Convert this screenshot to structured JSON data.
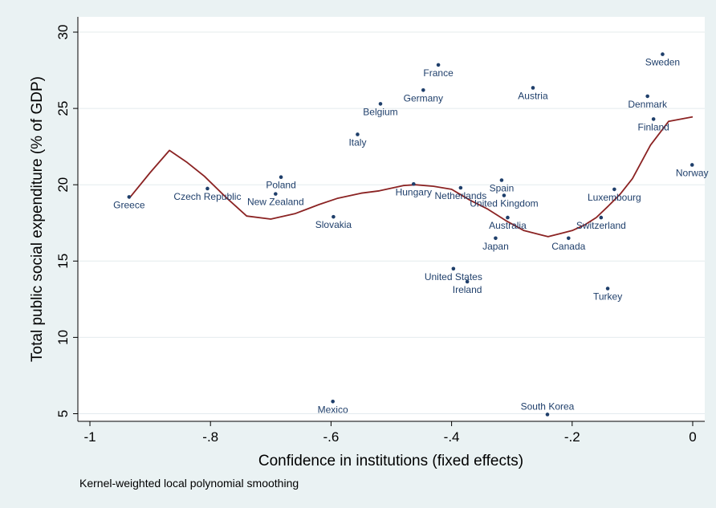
{
  "chart_data": {
    "type": "scatter",
    "title": "",
    "xlabel": "Confidence in institutions (fixed effects)",
    "ylabel": "Total public social expenditure (% of GDP)",
    "note": "Kernel-weighted local polynomial smoothing",
    "xlim": [
      -1.02,
      0.02
    ],
    "ylim": [
      4.5,
      31
    ],
    "xticks": [
      -1,
      -0.8,
      -0.6,
      -0.4,
      -0.2,
      0
    ],
    "xtick_labels": [
      "-1",
      "-.8",
      "-.6",
      "-.4",
      "-.2",
      "0"
    ],
    "yticks": [
      5,
      10,
      15,
      20,
      25,
      30
    ],
    "ytick_labels": [
      "5",
      "10",
      "15",
      "20",
      "25",
      "30"
    ],
    "grid": "horizontal",
    "legend": "none",
    "colors": {
      "background": "#eaf2f3",
      "plot_area": "#ffffff",
      "points": "#1f3f6b",
      "smooth_line": "#8b2323",
      "grid": "#e4ebee"
    },
    "points": [
      {
        "label": "Greece",
        "x": -0.935,
        "y": 19.2,
        "label_pos": "below"
      },
      {
        "label": "Czech Republic",
        "x": -0.805,
        "y": 19.75,
        "label_pos": "below"
      },
      {
        "label": "Poland",
        "x": -0.683,
        "y": 20.5,
        "label_pos": "below"
      },
      {
        "label": "New Zealand",
        "x": -0.692,
        "y": 19.4,
        "label_pos": "below"
      },
      {
        "label": "Slovakia",
        "x": -0.596,
        "y": 17.9,
        "label_pos": "below"
      },
      {
        "label": "Mexico",
        "x": -0.597,
        "y": 5.8,
        "label_pos": "below"
      },
      {
        "label": "Italy",
        "x": -0.556,
        "y": 23.3,
        "label_pos": "below"
      },
      {
        "label": "Belgium",
        "x": -0.518,
        "y": 25.3,
        "label_pos": "below"
      },
      {
        "label": "Hungary",
        "x": -0.463,
        "y": 20.05,
        "label_pos": "below"
      },
      {
        "label": "Germany",
        "x": -0.447,
        "y": 26.2,
        "label_pos": "below"
      },
      {
        "label": "France",
        "x": -0.422,
        "y": 27.85,
        "label_pos": "below"
      },
      {
        "label": "Netherlands",
        "x": -0.385,
        "y": 19.8,
        "label_pos": "below"
      },
      {
        "label": "United States",
        "x": -0.397,
        "y": 14.5,
        "label_pos": "below"
      },
      {
        "label": "Ireland",
        "x": -0.374,
        "y": 13.65,
        "label_pos": "below"
      },
      {
        "label": "Spain",
        "x": -0.317,
        "y": 20.3,
        "label_pos": "below"
      },
      {
        "label": "United Kingdom",
        "x": -0.313,
        "y": 19.3,
        "label_pos": "below"
      },
      {
        "label": "Australia",
        "x": -0.307,
        "y": 17.85,
        "label_pos": "below"
      },
      {
        "label": "Japan",
        "x": -0.327,
        "y": 16.5,
        "label_pos": "below"
      },
      {
        "label": "Austria",
        "x": -0.265,
        "y": 26.35,
        "label_pos": "below"
      },
      {
        "label": "Canada",
        "x": -0.206,
        "y": 16.5,
        "label_pos": "below"
      },
      {
        "label": "South Korea",
        "x": -0.241,
        "y": 4.95,
        "label_pos": "above"
      },
      {
        "label": "Switzerland",
        "x": -0.152,
        "y": 17.85,
        "label_pos": "below"
      },
      {
        "label": "Luxembourg",
        "x": -0.13,
        "y": 19.7,
        "label_pos": "below"
      },
      {
        "label": "Turkey",
        "x": -0.141,
        "y": 13.2,
        "label_pos": "below"
      },
      {
        "label": "Denmark",
        "x": -0.075,
        "y": 25.8,
        "label_pos": "below"
      },
      {
        "label": "Finland",
        "x": -0.065,
        "y": 24.3,
        "label_pos": "below"
      },
      {
        "label": "Sweden",
        "x": -0.05,
        "y": 28.55,
        "label_pos": "below"
      },
      {
        "label": "Norway",
        "x": -0.001,
        "y": 21.3,
        "label_pos": "below"
      }
    ],
    "series": [
      {
        "x": [
          -0.935,
          -0.9,
          -0.868,
          -0.84,
          -0.81,
          -0.775,
          -0.74,
          -0.7,
          -0.66,
          -0.62,
          -0.59,
          -0.55,
          -0.52,
          -0.48,
          -0.46,
          -0.43,
          -0.4,
          -0.37,
          -0.34,
          -0.31,
          -0.28,
          -0.25,
          -0.24,
          -0.22,
          -0.2,
          -0.18,
          -0.16,
          -0.14,
          -0.12,
          -0.1,
          -0.07,
          -0.04,
          0.0
        ],
        "y": [
          19.1,
          20.8,
          22.25,
          21.5,
          20.55,
          19.2,
          17.95,
          17.75,
          18.1,
          18.7,
          19.1,
          19.45,
          19.6,
          19.95,
          20.0,
          19.9,
          19.7,
          19.0,
          18.4,
          17.65,
          17.0,
          16.7,
          16.6,
          16.8,
          17.0,
          17.35,
          17.85,
          18.6,
          19.4,
          20.4,
          22.6,
          24.15,
          24.45
        ]
      }
    ]
  }
}
